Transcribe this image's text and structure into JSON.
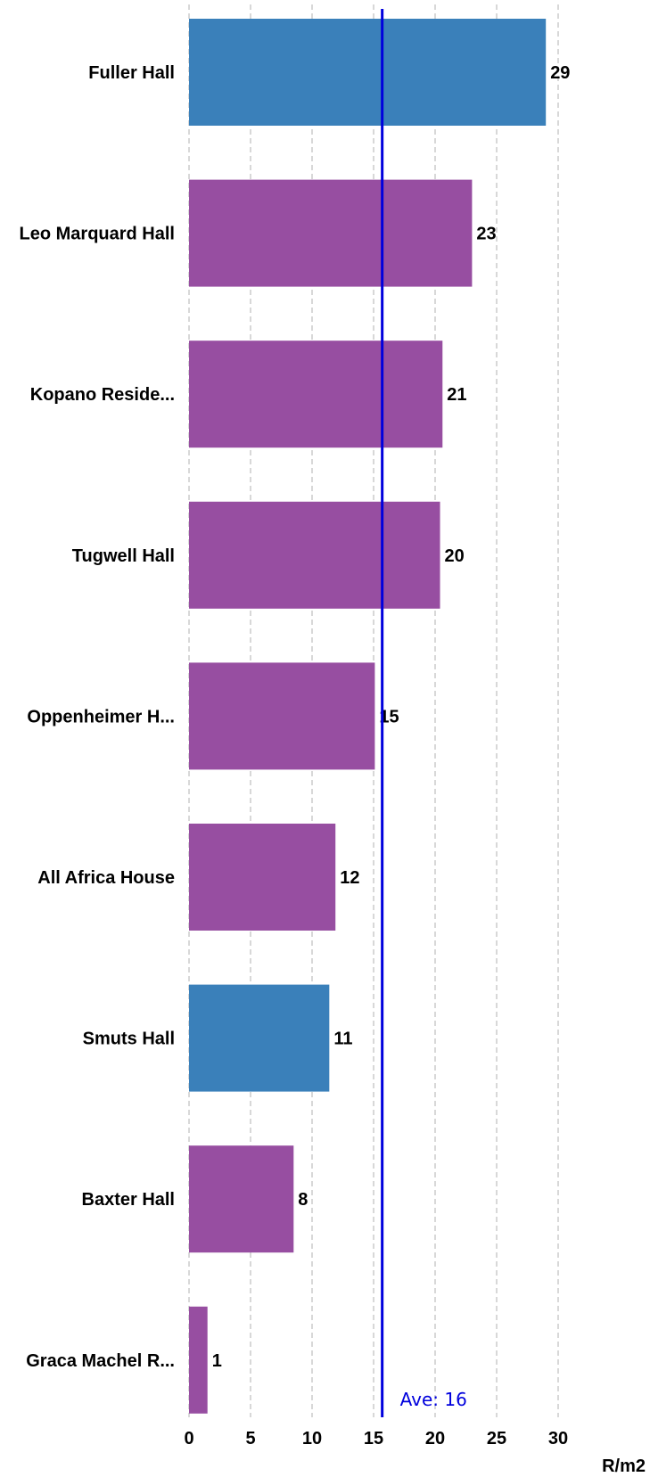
{
  "chart_data": {
    "type": "bar",
    "orientation": "horizontal",
    "categories": [
      "Fuller Hall",
      "Leo Marquard Hall",
      "Kopano Reside...",
      "Tugwell Hall",
      "Oppenheimer H...",
      "All Africa House",
      "Smuts Hall",
      "Baxter Hall",
      "Graca Machel R..."
    ],
    "values": [
      29,
      23,
      20.6,
      20.4,
      15.1,
      11.9,
      11.4,
      8.5,
      1.5
    ],
    "value_labels": [
      "29",
      "23",
      "21",
      "20",
      "15",
      "12",
      "11",
      "8",
      "1"
    ],
    "bar_colors": [
      "#3a80ba",
      "#974ea1",
      "#974ea1",
      "#974ea1",
      "#974ea1",
      "#974ea1",
      "#3a80ba",
      "#974ea1",
      "#974ea1"
    ],
    "xlim": [
      0,
      30
    ],
    "xticks": [
      "0",
      "5",
      "10",
      "15",
      "20",
      "25",
      "30"
    ],
    "xlabel": "R/m2",
    "grid": true,
    "average": {
      "value": 15.7,
      "label": "Ave: 16",
      "color": "#0000dd"
    }
  }
}
